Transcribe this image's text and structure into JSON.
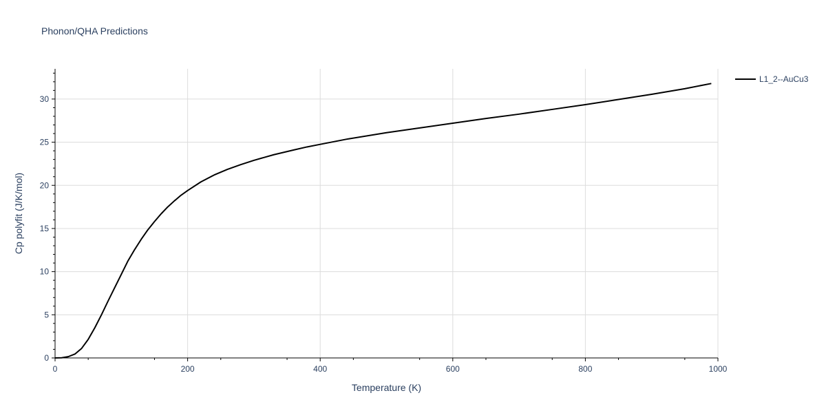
{
  "chart_data": {
    "type": "line",
    "title": "Phonon/QHA Predictions",
    "xlabel": "Temperature (K)",
    "ylabel": "Cp polyfit (J/K/mol)",
    "xlim": [
      0,
      1000
    ],
    "ylim": [
      0,
      33.5
    ],
    "x_ticks": [
      0,
      200,
      400,
      600,
      800,
      1000
    ],
    "y_ticks": [
      0,
      5,
      10,
      15,
      20,
      25,
      30
    ],
    "grid": true,
    "legend_position": "top-right",
    "series": [
      {
        "name": "L1_2--AuCu3",
        "color": "#000000",
        "x": [
          0,
          10,
          20,
          30,
          40,
          50,
          60,
          70,
          80,
          90,
          100,
          110,
          120,
          130,
          140,
          150,
          160,
          170,
          180,
          190,
          200,
          220,
          240,
          260,
          280,
          300,
          330,
          360,
          380,
          400,
          440,
          500,
          550,
          600,
          650,
          700,
          750,
          800,
          850,
          900,
          950,
          990
        ],
        "values": [
          0,
          0.02,
          0.15,
          0.45,
          1.1,
          2.15,
          3.5,
          5.0,
          6.6,
          8.15,
          9.7,
          11.25,
          12.55,
          13.75,
          14.85,
          15.8,
          16.7,
          17.5,
          18.2,
          18.85,
          19.4,
          20.4,
          21.2,
          21.85,
          22.4,
          22.9,
          23.55,
          24.1,
          24.45,
          24.75,
          25.35,
          26.1,
          26.65,
          27.2,
          27.75,
          28.25,
          28.8,
          29.35,
          29.95,
          30.55,
          31.2,
          31.8
        ]
      }
    ]
  }
}
